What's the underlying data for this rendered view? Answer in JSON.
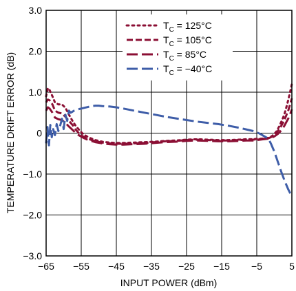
{
  "chart_data": {
    "type": "line",
    "xlabel": "INPUT POWER (dBm)",
    "ylabel": "TEMPERATURE DRIFT ERROR (dB)",
    "xlim": [
      -65,
      5
    ],
    "ylim": [
      -3.0,
      3.0
    ],
    "x_ticks": [
      "−65",
      "−55",
      "−45",
      "−35",
      "−25",
      "−15",
      "−5",
      "5"
    ],
    "y_ticks": [
      "3.0",
      "2.0",
      "1.0",
      "0",
      "−1.0",
      "−2.0",
      "−3.0"
    ],
    "grid": true,
    "legend_position": "top-center",
    "series": [
      {
        "name": "T",
        "subscript": "C",
        "suffix": " = 125°C",
        "color": "#8b0f34",
        "style": "dotted",
        "x": [
          -65.0,
          -64.5,
          -64.0,
          -63.2,
          -62.5,
          -61.5,
          -60.5,
          -59.5,
          -58.5,
          -57.5,
          -56.5,
          -55.5,
          -54.5,
          -53.0,
          -51.0,
          -49.0,
          -47.0,
          -45.0,
          -43.0,
          -40.0,
          -37.0,
          -34.0,
          -31.0,
          -28.0,
          -25.0,
          -22.0,
          -19.0,
          -16.0,
          -13.0,
          -10.0,
          -8.0,
          -6.0,
          -5.0,
          -4.0,
          -3.0,
          -2.0,
          -1.5,
          -1.0,
          -0.5,
          0.0,
          0.5,
          1.0,
          1.5,
          2.0,
          2.5,
          3.0,
          3.5,
          4.0,
          4.5,
          5.0
        ],
        "y": [
          0.9,
          1.1,
          1.05,
          0.9,
          0.75,
          0.7,
          0.7,
          0.62,
          0.45,
          0.3,
          0.17,
          0.07,
          -0.02,
          -0.1,
          -0.17,
          -0.21,
          -0.23,
          -0.24,
          -0.24,
          -0.23,
          -0.22,
          -0.21,
          -0.19,
          -0.18,
          -0.16,
          -0.15,
          -0.16,
          -0.17,
          -0.17,
          -0.16,
          -0.15,
          -0.15,
          -0.14,
          -0.14,
          -0.13,
          -0.12,
          -0.11,
          -0.09,
          -0.06,
          -0.02,
          0.03,
          0.1,
          0.18,
          0.28,
          0.38,
          0.5,
          0.65,
          0.82,
          1.0,
          1.2
        ]
      },
      {
        "name": "T",
        "subscript": "C",
        "suffix": " = 105°C",
        "color": "#8b0f34",
        "style": "short-dash",
        "x": [
          -65.0,
          -64.5,
          -64.0,
          -63.2,
          -62.5,
          -61.5,
          -60.5,
          -59.5,
          -58.5,
          -57.5,
          -56.5,
          -55.5,
          -54.5,
          -53.0,
          -51.0,
          -49.0,
          -47.0,
          -45.0,
          -43.0,
          -40.0,
          -37.0,
          -34.0,
          -31.0,
          -28.0,
          -25.0,
          -22.0,
          -19.0,
          -16.0,
          -13.0,
          -10.0,
          -8.0,
          -6.0,
          -5.0,
          -4.0,
          -3.0,
          -2.0,
          -1.5,
          -1.0,
          -0.5,
          0.0,
          0.5,
          1.0,
          1.5,
          2.0,
          2.5,
          3.0,
          3.5,
          4.0,
          4.5,
          5.0
        ],
        "y": [
          0.75,
          0.82,
          0.8,
          0.7,
          0.55,
          0.5,
          0.48,
          0.4,
          0.3,
          0.2,
          0.08,
          -0.02,
          -0.08,
          -0.14,
          -0.2,
          -0.23,
          -0.25,
          -0.26,
          -0.26,
          -0.25,
          -0.24,
          -0.22,
          -0.2,
          -0.19,
          -0.17,
          -0.16,
          -0.17,
          -0.18,
          -0.18,
          -0.17,
          -0.16,
          -0.16,
          -0.15,
          -0.15,
          -0.14,
          -0.13,
          -0.12,
          -0.1,
          -0.07,
          -0.04,
          0.0,
          0.05,
          0.11,
          0.18,
          0.26,
          0.35,
          0.45,
          0.56,
          0.7,
          0.85
        ]
      },
      {
        "name": "T",
        "subscript": "C",
        "suffix": " = 85°C",
        "color": "#8b0f34",
        "style": "long-dash",
        "x": [
          -65.0,
          -64.5,
          -64.0,
          -63.2,
          -62.5,
          -61.5,
          -60.5,
          -59.5,
          -58.5,
          -57.5,
          -56.5,
          -55.5,
          -54.5,
          -53.0,
          -51.0,
          -49.0,
          -47.0,
          -45.0,
          -43.0,
          -40.0,
          -37.0,
          -34.0,
          -31.0,
          -28.0,
          -25.0,
          -22.0,
          -19.0,
          -16.0,
          -13.0,
          -10.0,
          -8.0,
          -6.0,
          -5.0,
          -4.0,
          -3.0,
          -2.0,
          -1.5,
          -1.0,
          -0.5,
          0.0,
          0.5,
          1.0,
          1.5,
          2.0,
          2.5,
          3.0,
          3.5,
          4.0,
          4.5,
          5.0
        ],
        "y": [
          0.55,
          0.63,
          0.6,
          0.5,
          0.38,
          0.34,
          0.32,
          0.25,
          0.16,
          0.08,
          0.0,
          -0.06,
          -0.11,
          -0.17,
          -0.22,
          -0.25,
          -0.27,
          -0.28,
          -0.28,
          -0.27,
          -0.26,
          -0.24,
          -0.22,
          -0.21,
          -0.19,
          -0.18,
          -0.19,
          -0.2,
          -0.2,
          -0.19,
          -0.18,
          -0.18,
          -0.17,
          -0.16,
          -0.15,
          -0.14,
          -0.13,
          -0.12,
          -0.1,
          -0.08,
          -0.05,
          -0.02,
          0.02,
          0.07,
          0.13,
          0.2,
          0.28,
          0.36,
          0.46,
          0.58
        ]
      },
      {
        "name": "T",
        "subscript": "C",
        "suffix": " = −40°C",
        "color": "#3e5da8",
        "style": "long-dash",
        "x": [
          -65.0,
          -64.6,
          -64.2,
          -63.8,
          -63.4,
          -63.0,
          -62.5,
          -62.0,
          -61.5,
          -61.0,
          -60.5,
          -60.0,
          -59.5,
          -59.0,
          -58.5,
          -58.0,
          -57.0,
          -56.0,
          -55.0,
          -54.0,
          -53.0,
          -52.0,
          -51.0,
          -50.0,
          -49.0,
          -47.0,
          -45.0,
          -43.0,
          -40.0,
          -37.0,
          -34.0,
          -31.0,
          -28.0,
          -25.0,
          -22.0,
          -19.0,
          -16.0,
          -13.0,
          -10.0,
          -8.0,
          -6.0,
          -5.0,
          -4.0,
          -3.0,
          -2.0,
          -1.5,
          -1.0,
          0.0,
          1.0,
          2.0,
          3.0,
          4.0,
          5.0
        ],
        "y": [
          -0.25,
          0.15,
          -0.3,
          0.2,
          -0.1,
          0.1,
          -0.05,
          0.22,
          0.05,
          0.18,
          0.35,
          0.1,
          0.45,
          0.3,
          0.55,
          0.5,
          0.55,
          0.58,
          0.6,
          0.62,
          0.64,
          0.66,
          0.67,
          0.67,
          0.66,
          0.65,
          0.63,
          0.6,
          0.55,
          0.5,
          0.45,
          0.4,
          0.36,
          0.32,
          0.28,
          0.25,
          0.22,
          0.18,
          0.13,
          0.09,
          0.05,
          0.02,
          -0.02,
          -0.07,
          -0.12,
          -0.17,
          -0.25,
          -0.45,
          -0.7,
          -0.95,
          -1.18,
          -1.38,
          -1.55
        ]
      }
    ]
  }
}
